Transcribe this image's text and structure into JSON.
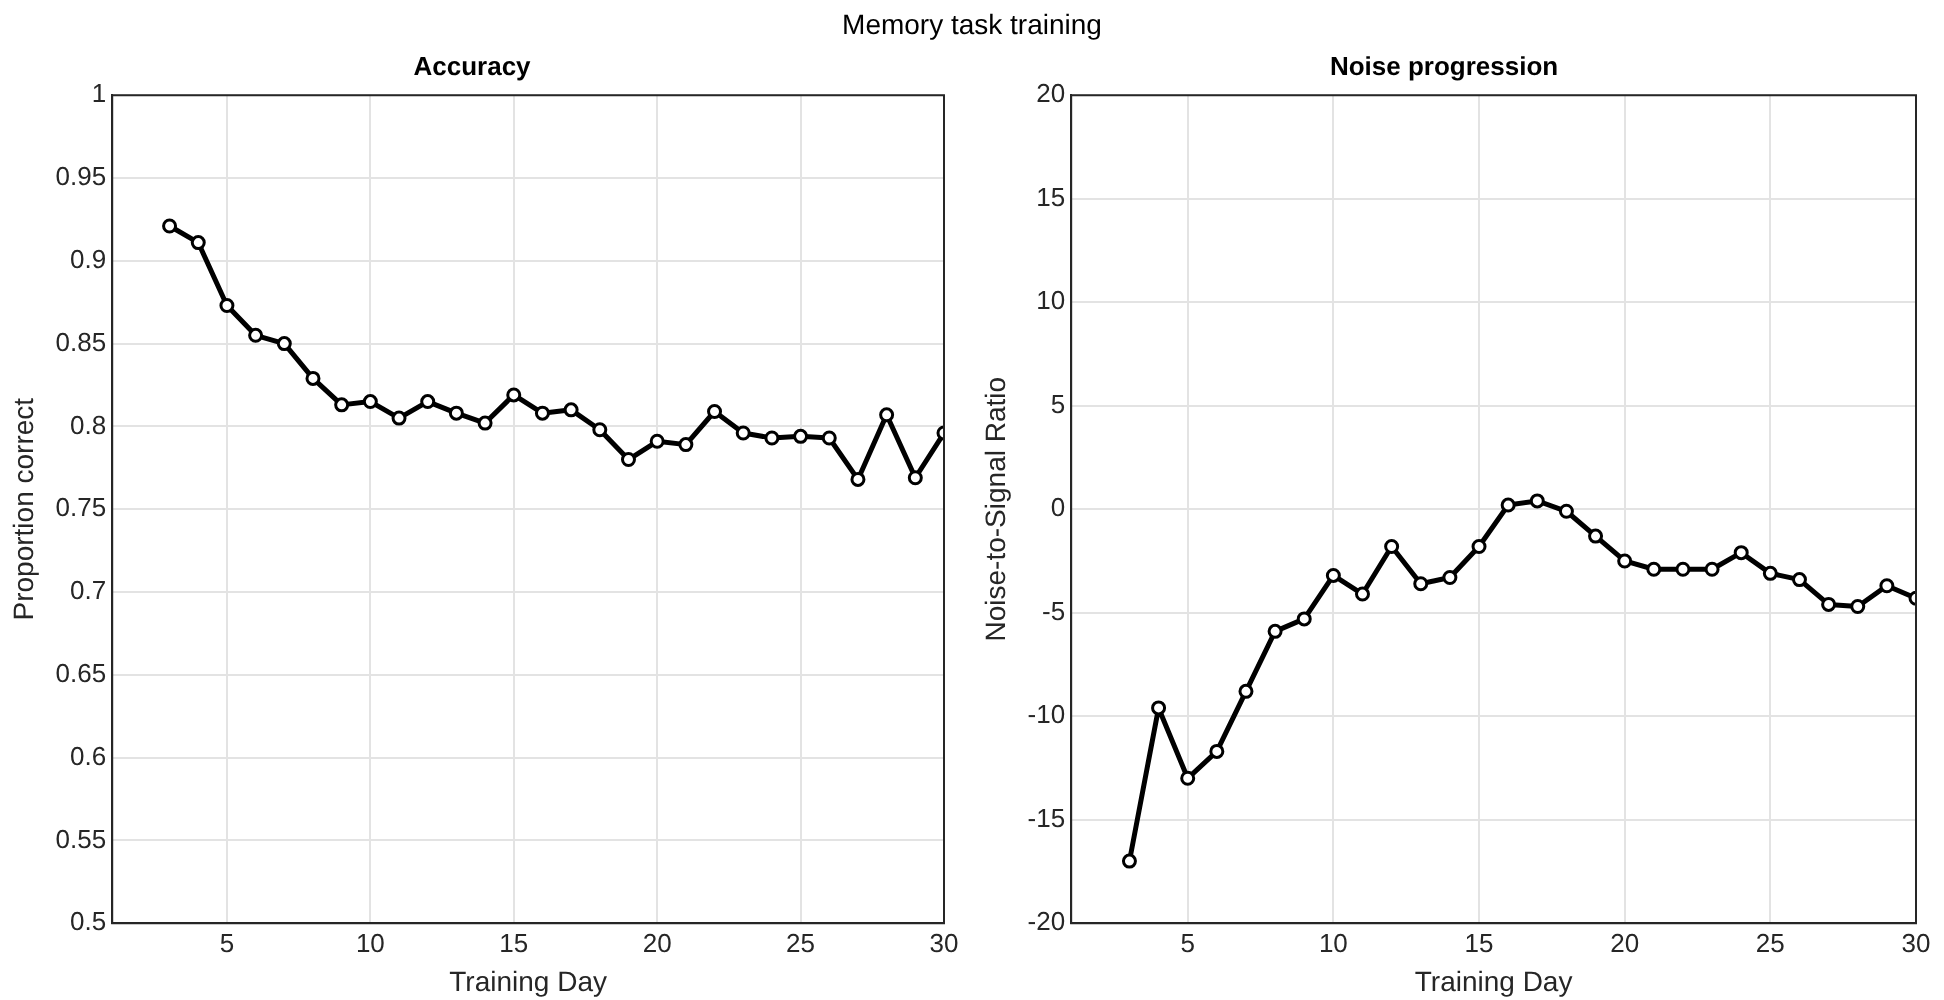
{
  "chart_data": [
    {
      "type": "line",
      "title": "Accuracy",
      "xlabel": "Training Day",
      "ylabel": "Proportion correct",
      "annotations": [
        "Memory task training"
      ],
      "x": [
        3,
        4,
        5,
        6,
        7,
        8,
        9,
        10,
        11,
        12,
        13,
        14,
        15,
        16,
        17,
        18,
        19,
        20,
        21,
        22,
        23,
        24,
        25,
        26,
        27,
        28,
        29,
        30
      ],
      "series": [
        {
          "color": "#000000",
          "values": [
            0.921,
            0.911,
            0.873,
            0.855,
            0.85,
            0.829,
            0.813,
            0.815,
            0.805,
            0.815,
            0.808,
            0.802,
            0.819,
            0.808,
            0.81,
            0.798,
            0.78,
            0.791,
            0.789,
            0.809,
            0.796,
            0.793,
            0.794,
            0.793,
            0.768,
            0.807,
            0.769,
            0.796
          ]
        }
      ],
      "xlim": [
        1,
        30
      ],
      "ylim": [
        0.5,
        1
      ],
      "xticks": [
        5,
        10,
        15,
        20,
        25,
        30
      ],
      "yticks": [
        0.5,
        0.55,
        0.6,
        0.65,
        0.7,
        0.75,
        0.8,
        0.85,
        0.9,
        0.95,
        1
      ],
      "grid": true,
      "marker": "circle",
      "line_style": "solid"
    },
    {
      "type": "line",
      "title": "Noise progression",
      "xlabel": "Training Day",
      "ylabel": "Noise-to-Signal Ratio",
      "x": [
        3,
        4,
        5,
        6,
        7,
        8,
        9,
        10,
        11,
        12,
        13,
        14,
        15,
        16,
        17,
        18,
        19,
        20,
        21,
        22,
        23,
        24,
        25,
        26,
        27,
        28,
        29,
        30
      ],
      "series": [
        {
          "color": "#000000",
          "values": [
            -17,
            -9.6,
            -13,
            -11.7,
            -8.8,
            -5.9,
            -5.3,
            -3.2,
            -4.1,
            -1.8,
            -3.6,
            -3.3,
            -1.8,
            0.2,
            0.4,
            -0.1,
            -1.3,
            -2.5,
            -2.9,
            -2.9,
            -2.9,
            -2.1,
            -3.1,
            -3.4,
            -4.6,
            -4.7,
            -3.7,
            -4.3
          ]
        }
      ],
      "xlim": [
        1,
        30
      ],
      "ylim": [
        -20,
        20
      ],
      "xticks": [
        5,
        10,
        15,
        20,
        25,
        30
      ],
      "yticks": [
        -20,
        -15,
        -10,
        -5,
        0,
        5,
        10,
        15,
        20
      ],
      "grid": true,
      "marker": "circle",
      "line_style": "solid"
    }
  ]
}
